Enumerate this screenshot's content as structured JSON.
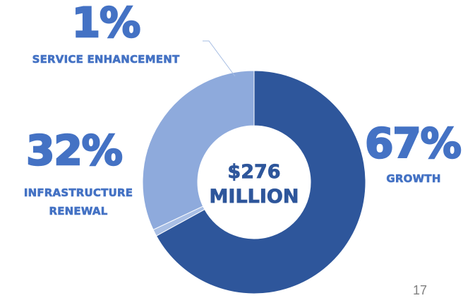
{
  "chart_data": {
    "type": "pie",
    "variant": "donut",
    "center_label": {
      "amount": "$276",
      "unit": "MILLION"
    },
    "slices": [
      {
        "label": "GROWTH",
        "percent_text": "67%",
        "value": 67,
        "color": "#2e569b"
      },
      {
        "label": "SERVICE ENHANCEMENT",
        "percent_text": "1%",
        "value": 1,
        "color": "#a9bfe5"
      },
      {
        "label": "INFRASTRUCTURE RENEWAL",
        "percent_text": "32%",
        "value": 32,
        "color": "#8eaadc"
      }
    ],
    "label_color": "#4472c4",
    "background_color": "#ffffff",
    "start_angle_deg": 0,
    "direction": "clockwise",
    "leader_line_color": "#a6bde3"
  },
  "page_number": "17",
  "page_number_color": "#7f7f7f"
}
